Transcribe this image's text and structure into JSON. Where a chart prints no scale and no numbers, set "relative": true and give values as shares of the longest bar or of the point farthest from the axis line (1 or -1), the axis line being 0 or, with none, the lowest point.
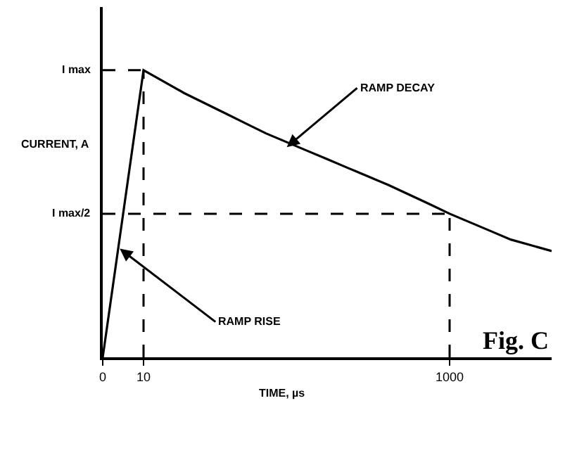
{
  "chart_data": {
    "type": "line",
    "xlabel": "TIME, µs",
    "ylabel": "CURRENT, A",
    "relative": true,
    "categories": [
      "0",
      null,
      "10",
      null,
      null,
      null,
      null,
      null,
      null,
      null,
      null,
      null,
      null,
      null,
      null,
      null,
      null,
      "1000",
      null,
      null,
      null,
      null,
      null
    ],
    "series": [
      {
        "color": "#000000",
        "line_style": "solid",
        "values": [
          0,
          0.5,
          1,
          0.96,
          0.92,
          0.885,
          0.85,
          0.815,
          0.78,
          0.75,
          0.72,
          0.69,
          0.66,
          0.63,
          0.6,
          0.567,
          0.534,
          0.5,
          0.47,
          0.44,
          0.41,
          0.39,
          0.37
        ]
      }
    ],
    "ref_lines": [
      {
        "axis": "x",
        "value": "10",
        "line_style": "dashed",
        "color": "#000000"
      },
      {
        "axis": "x",
        "value": "1000",
        "line_style": "dashed",
        "color": "#000000"
      },
      {
        "axis": "y",
        "value": 1,
        "label": "I max",
        "line_style": "dashed",
        "color": "#000000"
      },
      {
        "axis": "y",
        "value": 0.5,
        "label": "I max/2",
        "line_style": "dashed",
        "color": "#000000"
      }
    ],
    "annotations": [
      "RAMP DECAY",
      "RAMP RISE",
      "Fig. C"
    ],
    "marker": "none"
  }
}
